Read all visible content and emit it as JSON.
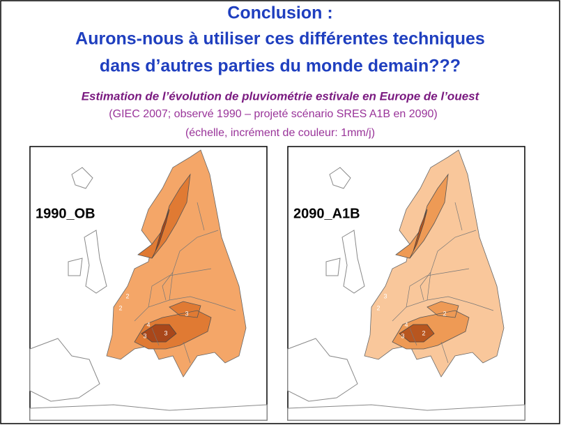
{
  "header": {
    "title_lines": [
      "Conclusion :",
      "Aurons-nous à utiliser ces différentes techniques",
      "dans d’autres parties du monde demain???"
    ]
  },
  "subtitle": {
    "heading": "Estimation de l’évolution de pluviométrie estivale en Europe de l’ouest",
    "lines": [
      "(GIEC 2007; observé 1990 – projeté scénario SRES A1B en 2090)",
      "(échelle,  incrément de couleur: 1mm/j)"
    ]
  },
  "maps": [
    {
      "label": "1990_OB",
      "contour_labels": [
        "2",
        "4",
        "3",
        "3",
        "3",
        "2"
      ]
    },
    {
      "label": "2090_A1B",
      "contour_labels": [
        "2",
        "4",
        "3",
        "2",
        "2",
        "3"
      ]
    }
  ]
}
